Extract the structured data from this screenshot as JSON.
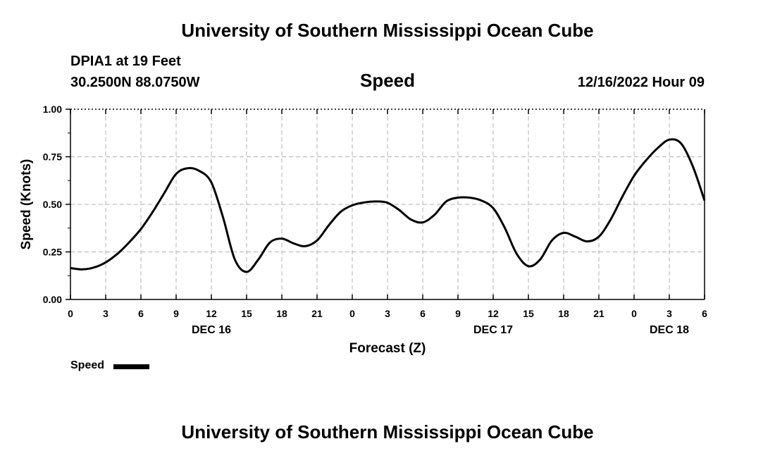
{
  "header": {
    "title": "University of Southern Mississippi Ocean Cube",
    "station": "DPIA1 at 19 Feet",
    "coordinates": "30.2500N  88.0750W",
    "timestamp": "12/16/2022 Hour 09"
  },
  "footer": {
    "title": "University of Southern Mississippi Ocean Cube"
  },
  "legend": {
    "label": "Speed",
    "color": "#000000"
  },
  "chart_data": {
    "type": "line",
    "title": "Speed",
    "xlabel": "Forecast (Z)",
    "ylabel": "Speed (Knots)",
    "ylim": [
      0,
      1
    ],
    "xlim": [
      0,
      54
    ],
    "x_unit": "hours since DEC 16 00Z",
    "y_tick_labels": [
      "0.00",
      "0.25",
      "0.50",
      "0.75",
      "1.00"
    ],
    "y_ticks": [
      0,
      0.25,
      0.5,
      0.75,
      1.0
    ],
    "x_ticks": [
      0,
      3,
      6,
      9,
      12,
      15,
      18,
      21,
      24,
      27,
      30,
      33,
      36,
      39,
      42,
      45,
      48,
      51,
      54
    ],
    "x_tick_labels": [
      "0",
      "3",
      "6",
      "9",
      "12",
      "15",
      "18",
      "21",
      "0",
      "3",
      "6",
      "9",
      "12",
      "15",
      "18",
      "21",
      "0",
      "3",
      "6"
    ],
    "date_labels": [
      {
        "x": 12,
        "label": "DEC 16"
      },
      {
        "x": 36,
        "label": "DEC 17"
      },
      {
        "x": 51,
        "label": "DEC 18"
      }
    ],
    "grid": true,
    "series": [
      {
        "name": "Speed",
        "color": "#000000",
        "x": [
          0,
          1,
          2,
          3,
          4,
          5,
          6,
          7,
          8,
          9,
          10,
          11,
          12,
          13,
          14,
          15,
          16,
          17,
          18,
          19,
          20,
          21,
          22,
          23,
          24,
          25,
          26,
          27,
          28,
          29,
          30,
          31,
          32,
          33,
          34,
          35,
          36,
          37,
          38,
          39,
          40,
          41,
          42,
          43,
          44,
          45,
          46,
          47,
          48,
          49,
          50,
          51,
          52,
          53,
          54
        ],
        "values": [
          0.165,
          0.158,
          0.168,
          0.195,
          0.24,
          0.3,
          0.37,
          0.46,
          0.56,
          0.66,
          0.69,
          0.675,
          0.615,
          0.43,
          0.21,
          0.145,
          0.21,
          0.3,
          0.32,
          0.295,
          0.28,
          0.31,
          0.39,
          0.46,
          0.495,
          0.51,
          0.515,
          0.508,
          0.47,
          0.42,
          0.405,
          0.445,
          0.515,
          0.535,
          0.535,
          0.52,
          0.48,
          0.375,
          0.24,
          0.175,
          0.21,
          0.31,
          0.35,
          0.33,
          0.305,
          0.33,
          0.42,
          0.54,
          0.65,
          0.73,
          0.795,
          0.84,
          0.82,
          0.7,
          0.52
        ]
      }
    ]
  }
}
